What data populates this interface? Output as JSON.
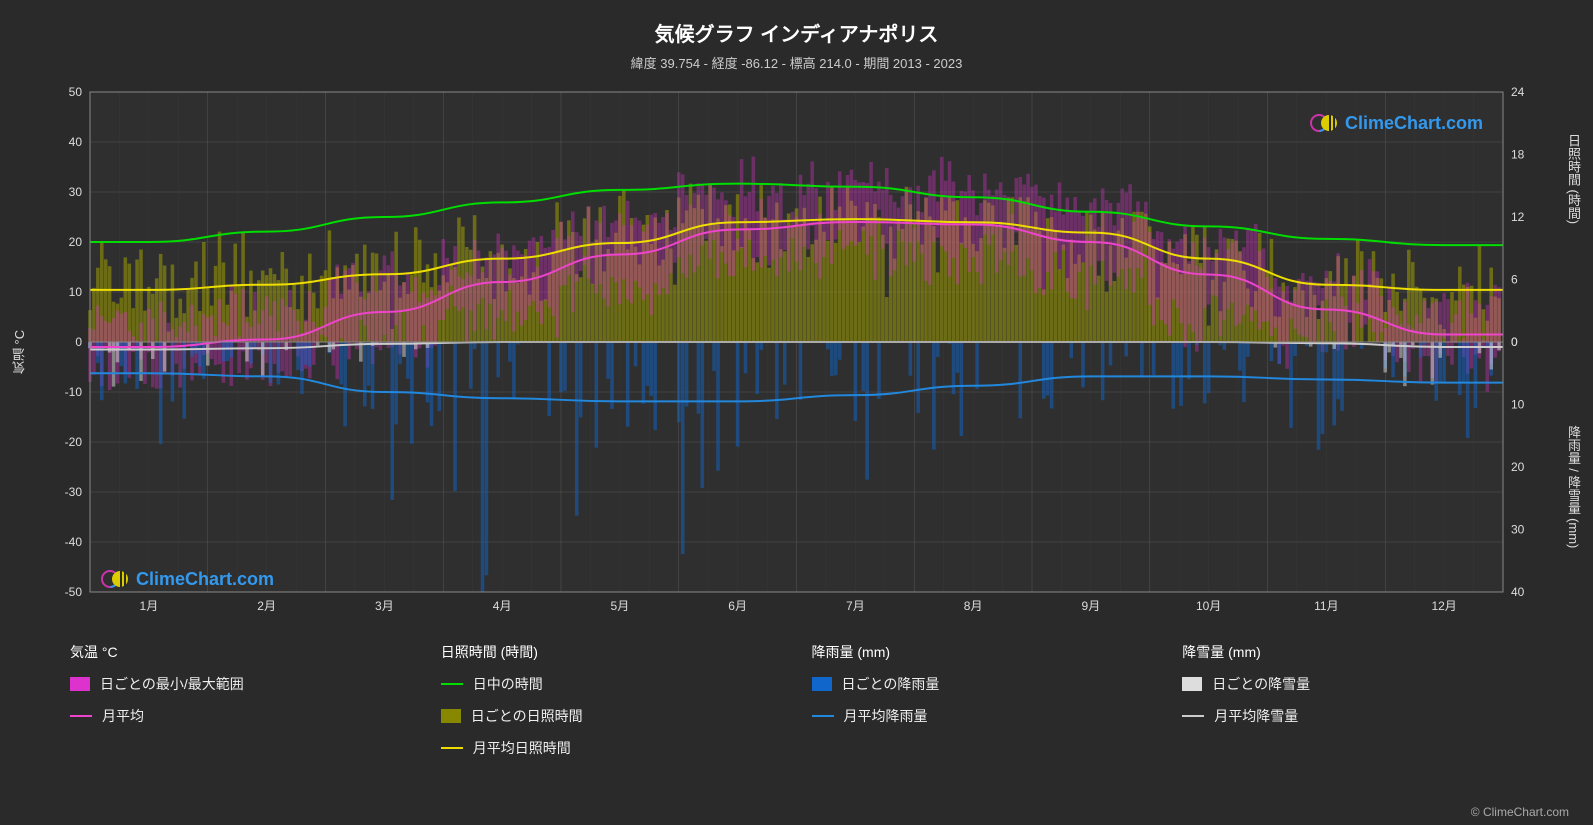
{
  "title": "気候グラフ インディアナポリス",
  "subtitle": "緯度 39.754 - 経度 -86.12 - 標高 214.0 - 期間 2013 - 2023",
  "attribution": "© ClimeChart.com",
  "logo_text": "ClimeChart.com",
  "chart": {
    "background": "#2a2a2a",
    "plot_bg": "#2f2f2f",
    "grid_color": "#555555",
    "border_color": "#888888",
    "months": [
      "1月",
      "2月",
      "3月",
      "4月",
      "5月",
      "6月",
      "7月",
      "8月",
      "9月",
      "10月",
      "11月",
      "12月"
    ],
    "y_left_label": "気温 °C",
    "y_left_ticks": [
      50,
      40,
      30,
      20,
      10,
      0,
      -10,
      -20,
      -30,
      -40,
      -50
    ],
    "y_left_min": -50,
    "y_left_max": 50,
    "y_right_top_label": "日照時間 (時間)",
    "y_right_top_ticks": [
      24,
      18,
      12,
      6,
      0
    ],
    "y_right_top_min": 0,
    "y_right_top_max": 24,
    "y_right_bot_label": "降雨量 / 降雪量 (mm)",
    "y_right_bot_ticks": [
      0,
      10,
      20,
      30,
      40
    ],
    "y_right_bot_min": 0,
    "y_right_bot_max": 40,
    "tick_fontsize": 12,
    "label_fontsize": 13,
    "lines": {
      "daylight": {
        "color": "#00dd00",
        "width": 2,
        "values": [
          9.6,
          10.6,
          12.0,
          13.4,
          14.6,
          15.2,
          14.9,
          13.9,
          12.5,
          11.1,
          9.9,
          9.3
        ]
      },
      "sunshine_avg": {
        "color": "#eedd00",
        "width": 2,
        "values": [
          5.0,
          5.5,
          6.5,
          8.0,
          9.5,
          11.5,
          11.8,
          11.5,
          10.5,
          8.0,
          5.5,
          5.0
        ]
      },
      "temp_avg": {
        "color": "#ee44cc",
        "width": 2,
        "values": [
          -1.0,
          0.5,
          6.0,
          12.0,
          17.5,
          22.5,
          24.0,
          23.5,
          20.0,
          13.5,
          6.5,
          1.5
        ]
      },
      "rain_avg": {
        "color": "#2288dd",
        "width": 2,
        "values": [
          5.0,
          5.5,
          8.0,
          9.0,
          9.5,
          9.5,
          8.5,
          7.0,
          5.5,
          5.5,
          6.0,
          6.5
        ]
      },
      "snow_avg": {
        "color": "#cccccc",
        "width": 2,
        "values": [
          1.2,
          1.0,
          0.3,
          0.0,
          0.0,
          0.0,
          0.0,
          0.0,
          0.0,
          0.0,
          0.2,
          0.8
        ]
      }
    },
    "temp_range": {
      "color": "#dd33cc",
      "opacity": 0.5,
      "max": [
        4,
        6,
        12,
        19,
        24,
        29,
        31,
        30,
        27,
        20,
        12,
        6
      ],
      "min": [
        -6,
        -5,
        0,
        5,
        11,
        16,
        18,
        17,
        13,
        6,
        1,
        -3
      ]
    },
    "sunshine_daily": {
      "color": "#aaaa00",
      "opacity": 0.5,
      "values": [
        5.0,
        5.5,
        6.5,
        8.0,
        9.5,
        11.5,
        11.8,
        11.5,
        10.5,
        8.0,
        5.5,
        5.0
      ]
    },
    "rain_daily": {
      "color": "#1166cc",
      "opacity": 0.5
    },
    "snow_daily": {
      "color": "#dddddd",
      "opacity": 0.5
    }
  },
  "legend": {
    "cols": [
      {
        "heading": "気温 °C",
        "items": [
          {
            "type": "swatch",
            "color": "#dd33cc",
            "label": "日ごとの最小/最大範囲"
          },
          {
            "type": "line",
            "color": "#ee44cc",
            "label": "月平均"
          }
        ]
      },
      {
        "heading": "日照時間 (時間)",
        "items": [
          {
            "type": "line",
            "color": "#00dd00",
            "label": "日中の時間"
          },
          {
            "type": "swatch",
            "color": "#888800",
            "label": "日ごとの日照時間"
          },
          {
            "type": "line",
            "color": "#eedd00",
            "label": "月平均日照時間"
          }
        ]
      },
      {
        "heading": "降雨量 (mm)",
        "items": [
          {
            "type": "swatch",
            "color": "#1166cc",
            "label": "日ごとの降雨量"
          },
          {
            "type": "line",
            "color": "#2288dd",
            "label": "月平均降雨量"
          }
        ]
      },
      {
        "heading": "降雪量 (mm)",
        "items": [
          {
            "type": "swatch",
            "color": "#dddddd",
            "label": "日ごとの降雪量"
          },
          {
            "type": "line",
            "color": "#cccccc",
            "label": "月平均降雪量"
          }
        ]
      }
    ]
  }
}
